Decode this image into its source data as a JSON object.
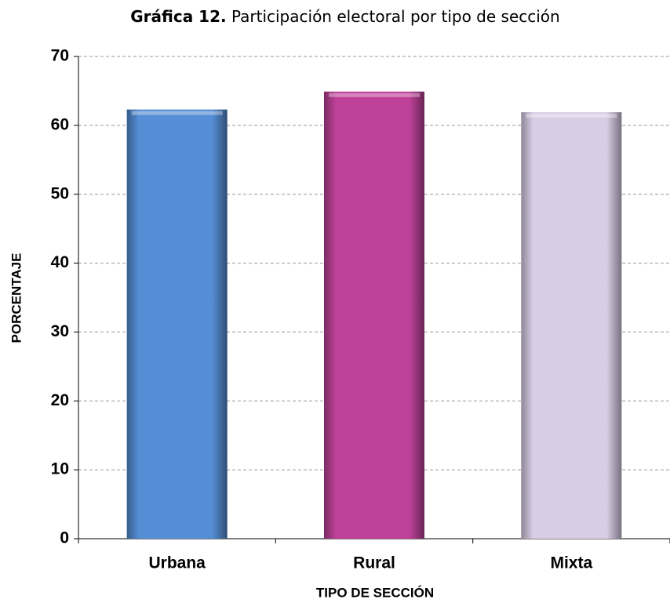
{
  "chart_data": {
    "type": "bar",
    "title": {
      "label": "Gráfica 12.",
      "text": "Participación electoral por tipo de sección"
    },
    "x_label": "TIPO DE SECCIÓN",
    "y_label": "PORCENTAJE",
    "categories": [
      "Urbana",
      "Rural",
      "Mixta"
    ],
    "values": [
      62.3,
      64.9,
      61.9
    ],
    "colors": [
      "#558ed5",
      "#bf4199",
      "#d9cde6"
    ],
    "ylim": [
      0,
      70
    ],
    "yticks": [
      0,
      10,
      20,
      30,
      40,
      50,
      60,
      70
    ],
    "grid": true
  }
}
